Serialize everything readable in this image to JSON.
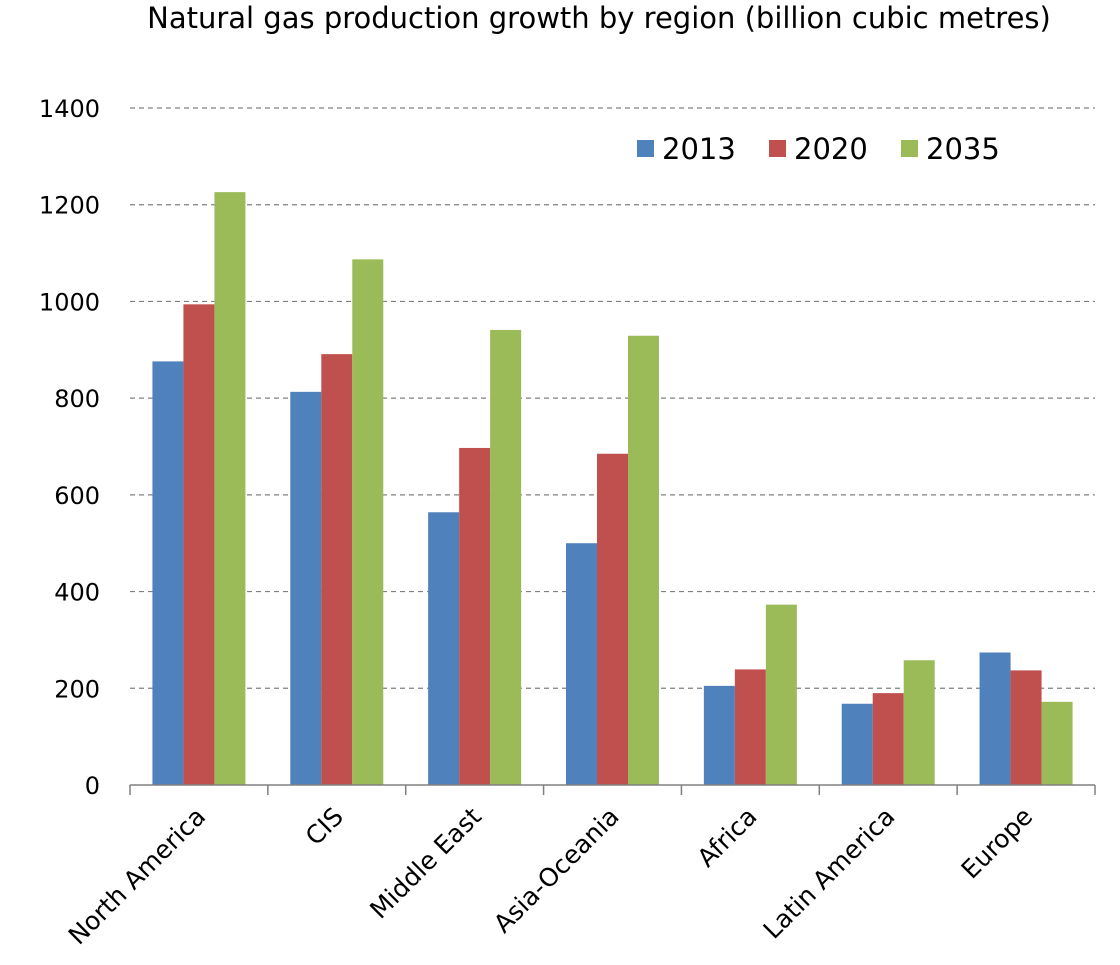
{
  "chart_data": {
    "type": "bar",
    "title": "Natural gas production growth by region (billion cubic metres)",
    "xlabel": "",
    "ylabel": "",
    "ylim": [
      0,
      1400
    ],
    "yticks": [
      0,
      200,
      400,
      600,
      800,
      1000,
      1200,
      1400
    ],
    "grid": true,
    "legend_position": "top-right",
    "categories": [
      "North America",
      "CIS",
      "Middle East",
      "Asia-Oceania",
      "Africa",
      "Latin America",
      "Europe"
    ],
    "series": [
      {
        "name": "2013",
        "color": "#4F81BD",
        "values": [
          876,
          813,
          564,
          500,
          205,
          168,
          274
        ]
      },
      {
        "name": "2020",
        "color": "#C0504D",
        "values": [
          994,
          891,
          697,
          685,
          239,
          190,
          237
        ]
      },
      {
        "name": "2035",
        "color": "#9BBB59",
        "values": [
          1226,
          1087,
          941,
          929,
          373,
          258,
          172
        ]
      }
    ]
  }
}
